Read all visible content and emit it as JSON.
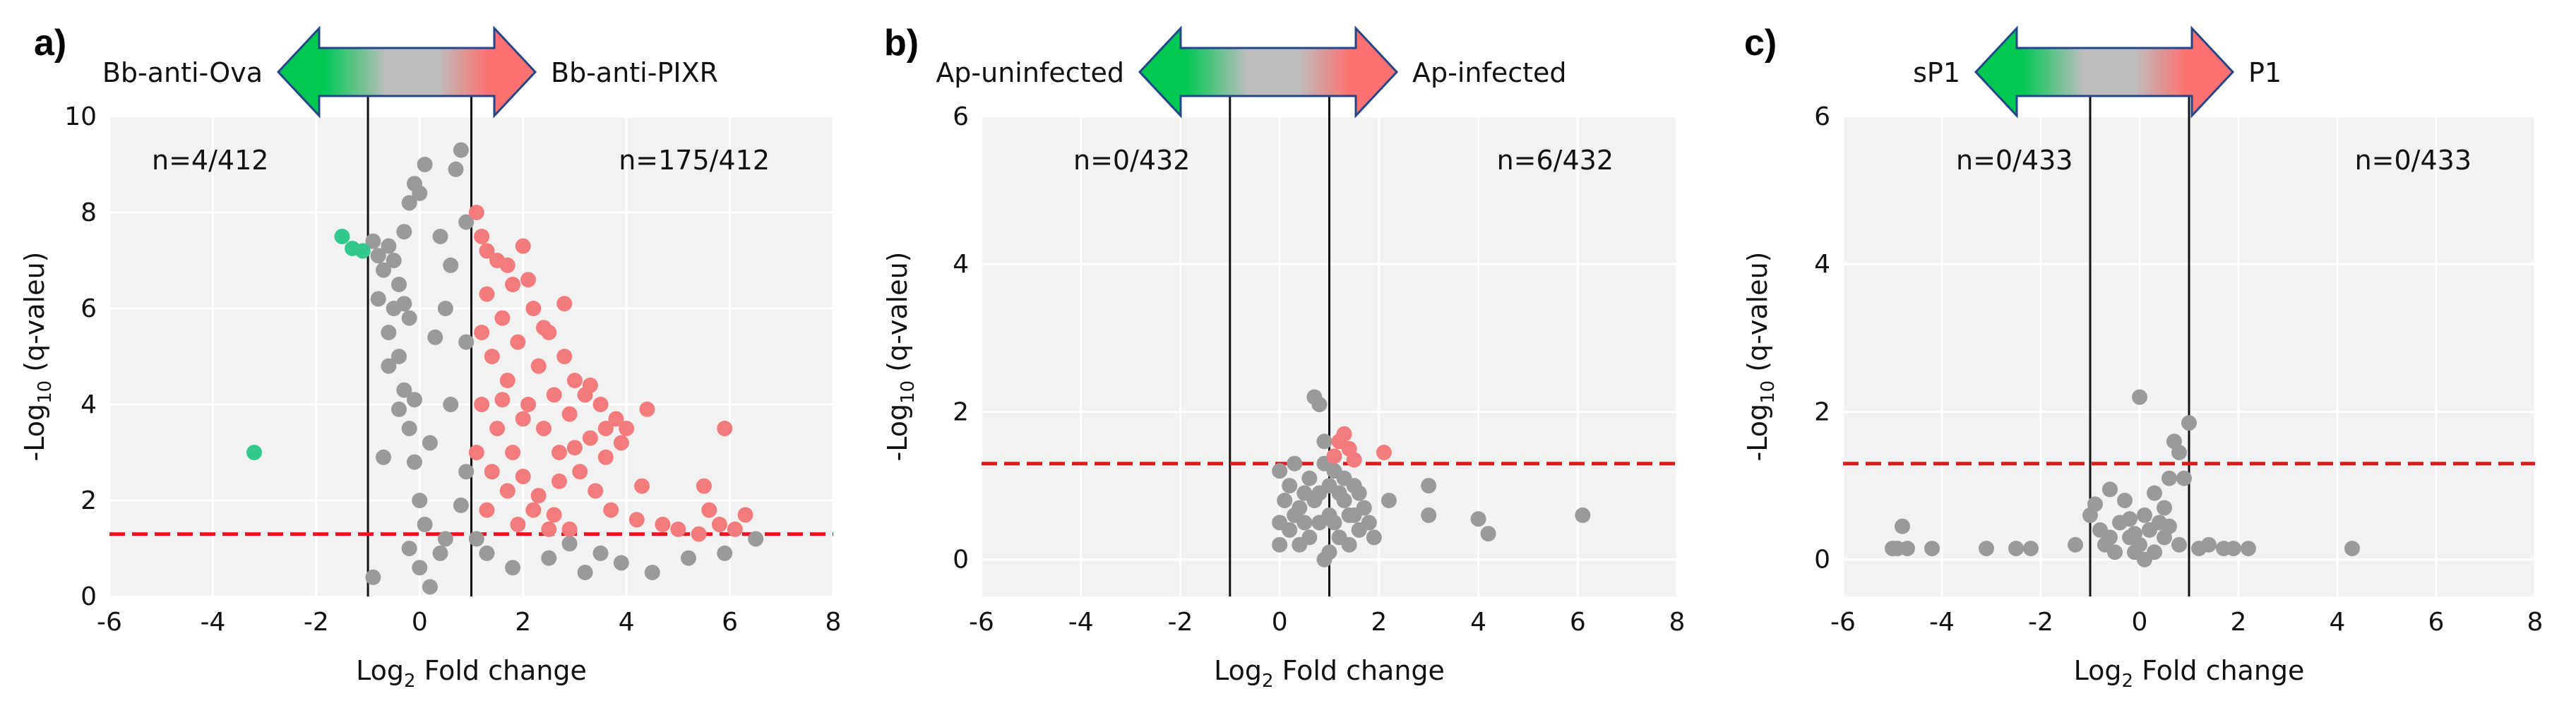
{
  "colors": {
    "up": "#f47b7b",
    "down": "#33c98c",
    "ns": "#9a9a9a",
    "plot_bg": "#f2f2f2",
    "grid": "#ffffff",
    "threshold": "#e8161b",
    "arrow_green": "#00c853",
    "arrow_gray": "#bdbdbd",
    "arrow_red": "#ff7070",
    "arrow_border": "#23458a"
  },
  "chart_data": [
    {
      "type": "scatter",
      "panel": "a)",
      "left_label": "Bb-anti-Ova",
      "right_label": "Bb-anti-PIXR",
      "xlabel_pre": "Log",
      "xlabel_sub": "2",
      "xlabel_post": " Fold change",
      "ylabel_pre": "-Log",
      "ylabel_sub": "10",
      "ylabel_post": " (q-valeu)",
      "xlim": [
        -6,
        8
      ],
      "ylim": [
        0,
        10
      ],
      "xticks": [
        "-6",
        "-4",
        "-2",
        "0",
        "2",
        "4",
        "6",
        "8"
      ],
      "yticks": [
        "0",
        "2",
        "4",
        "6",
        "8",
        "10"
      ],
      "fc_threshold": [
        -1,
        1
      ],
      "q_threshold": 1.3,
      "n_left": "n=4/412",
      "n_right": "n=175/412",
      "points": {
        "down": [
          [
            -1.5,
            7.5
          ],
          [
            -1.3,
            7.25
          ],
          [
            -3.2,
            3.0
          ],
          [
            -1.1,
            7.2
          ]
        ],
        "up": [
          [
            1.1,
            8.0
          ],
          [
            1.2,
            7.5
          ],
          [
            1.5,
            7.0
          ],
          [
            1.8,
            6.5
          ],
          [
            2.0,
            7.3
          ],
          [
            2.2,
            6.0
          ],
          [
            2.5,
            5.5
          ],
          [
            2.8,
            5.0
          ],
          [
            3.0,
            4.5
          ],
          [
            3.2,
            4.2
          ],
          [
            3.5,
            4.0
          ],
          [
            3.8,
            3.7
          ],
          [
            4.0,
            3.5
          ],
          [
            1.3,
            6.3
          ],
          [
            1.6,
            5.8
          ],
          [
            1.9,
            5.3
          ],
          [
            2.3,
            4.8
          ],
          [
            2.6,
            4.2
          ],
          [
            2.9,
            3.8
          ],
          [
            3.3,
            3.3
          ],
          [
            3.6,
            2.9
          ],
          [
            1.4,
            5.0
          ],
          [
            1.7,
            4.5
          ],
          [
            2.1,
            4.0
          ],
          [
            2.4,
            3.5
          ],
          [
            2.7,
            3.0
          ],
          [
            3.1,
            2.6
          ],
          [
            3.4,
            2.2
          ],
          [
            3.7,
            1.8
          ],
          [
            4.2,
            1.6
          ],
          [
            1.2,
            4.0
          ],
          [
            1.5,
            3.5
          ],
          [
            1.8,
            3.0
          ],
          [
            2.0,
            2.5
          ],
          [
            2.3,
            2.1
          ],
          [
            2.6,
            1.7
          ],
          [
            2.9,
            1.4
          ],
          [
            1.1,
            3.0
          ],
          [
            1.4,
            2.6
          ],
          [
            1.7,
            2.2
          ],
          [
            2.2,
            1.8
          ],
          [
            1.3,
            1.8
          ],
          [
            1.9,
            1.5
          ],
          [
            2.5,
            1.4
          ],
          [
            3.9,
            3.2
          ],
          [
            4.3,
            2.3
          ],
          [
            4.7,
            1.5
          ],
          [
            5.0,
            1.4
          ],
          [
            5.4,
            1.3
          ],
          [
            5.6,
            1.8
          ],
          [
            5.8,
            1.5
          ],
          [
            6.1,
            1.4
          ],
          [
            6.3,
            1.7
          ],
          [
            5.9,
            3.5
          ],
          [
            5.5,
            2.3
          ],
          [
            4.4,
            3.9
          ],
          [
            3.3,
            4.4
          ],
          [
            2.8,
            6.1
          ],
          [
            2.4,
            5.6
          ],
          [
            1.7,
            6.9
          ],
          [
            1.3,
            7.2
          ],
          [
            2.1,
            6.6
          ],
          [
            3.0,
            3.1
          ],
          [
            3.6,
            3.5
          ],
          [
            2.0,
            3.7
          ],
          [
            1.6,
            4.1
          ],
          [
            1.2,
            5.5
          ],
          [
            2.7,
            2.4
          ]
        ],
        "ns": [
          [
            -0.9,
            7.4
          ],
          [
            -0.8,
            7.1
          ],
          [
            -0.7,
            6.8
          ],
          [
            -0.6,
            7.3
          ],
          [
            -0.5,
            7.0
          ],
          [
            -0.4,
            6.5
          ],
          [
            -0.3,
            7.6
          ],
          [
            -0.2,
            8.2
          ],
          [
            -0.1,
            8.6
          ],
          [
            0.0,
            8.4
          ],
          [
            -0.5,
            6.0
          ],
          [
            -0.6,
            5.5
          ],
          [
            -0.4,
            5.0
          ],
          [
            -0.3,
            4.3
          ],
          [
            -0.2,
            3.5
          ],
          [
            -0.1,
            2.8
          ],
          [
            0.0,
            2.0
          ],
          [
            0.1,
            1.5
          ],
          [
            -0.2,
            1.0
          ],
          [
            0.0,
            0.6
          ],
          [
            -0.9,
            0.4
          ],
          [
            0.2,
            0.2
          ],
          [
            0.4,
            0.9
          ],
          [
            0.6,
            6.9
          ],
          [
            0.7,
            8.9
          ],
          [
            0.8,
            9.3
          ],
          [
            0.9,
            7.8
          ],
          [
            0.5,
            6.0
          ],
          [
            0.3,
            5.4
          ],
          [
            0.2,
            3.2
          ],
          [
            0.8,
            1.9
          ],
          [
            0.9,
            2.6
          ],
          [
            0.5,
            1.2
          ],
          [
            -0.7,
            2.9
          ],
          [
            -0.8,
            6.2
          ],
          [
            -0.3,
            6.1
          ],
          [
            -0.2,
            5.8
          ],
          [
            0.1,
            9.0
          ],
          [
            1.3,
            0.9
          ],
          [
            1.8,
            0.6
          ],
          [
            2.5,
            0.8
          ],
          [
            3.2,
            0.5
          ],
          [
            3.9,
            0.7
          ],
          [
            4.5,
            0.5
          ],
          [
            5.2,
            0.8
          ],
          [
            5.9,
            0.9
          ],
          [
            6.5,
            1.2
          ],
          [
            1.1,
            1.2
          ],
          [
            2.9,
            1.1
          ],
          [
            3.5,
            0.9
          ],
          [
            0.6,
            4.0
          ],
          [
            0.4,
            7.5
          ],
          [
            0.9,
            5.3
          ],
          [
            -0.4,
            3.9
          ],
          [
            -0.6,
            4.8
          ],
          [
            -0.1,
            4.1
          ]
        ]
      }
    },
    {
      "type": "scatter",
      "panel": "b)",
      "left_label": "Ap-uninfected",
      "right_label": "Ap-infected",
      "xlabel_pre": "Log",
      "xlabel_sub": "2",
      "xlabel_post": " Fold change",
      "ylabel_pre": "-Log",
      "ylabel_sub": "10",
      "ylabel_post": " (q-valeu)",
      "xlim": [
        -6,
        8
      ],
      "ylim": [
        -0.5,
        6
      ],
      "xticks": [
        "-6",
        "-4",
        "-2",
        "0",
        "2",
        "4",
        "6",
        "8"
      ],
      "yticks": [
        "0",
        "2",
        "4",
        "6"
      ],
      "fc_threshold": [
        -1,
        1
      ],
      "q_threshold": 1.3,
      "n_left": "n=0/432",
      "n_right": "n=6/432",
      "points": {
        "down": [],
        "up": [
          [
            1.2,
            1.6
          ],
          [
            1.4,
            1.5
          ],
          [
            1.1,
            1.4
          ],
          [
            1.5,
            1.35
          ],
          [
            2.1,
            1.45
          ],
          [
            1.3,
            1.7
          ]
        ],
        "ns": [
          [
            0.0,
            1.2
          ],
          [
            0.1,
            0.8
          ],
          [
            0.2,
            0.4
          ],
          [
            0.3,
            0.6
          ],
          [
            0.4,
            0.2
          ],
          [
            0.5,
            0.9
          ],
          [
            0.6,
            1.1
          ],
          [
            0.7,
            2.2
          ],
          [
            0.8,
            2.1
          ],
          [
            0.9,
            1.6
          ],
          [
            1.0,
            1.0
          ],
          [
            1.1,
            0.5
          ],
          [
            1.2,
            0.3
          ],
          [
            1.3,
            0.8
          ],
          [
            1.4,
            0.6
          ],
          [
            1.5,
            1.0
          ],
          [
            1.6,
            0.4
          ],
          [
            1.7,
            0.7
          ],
          [
            1.8,
            0.5
          ],
          [
            0.0,
            0.5
          ],
          [
            0.2,
            1.0
          ],
          [
            0.4,
            0.7
          ],
          [
            0.6,
            0.3
          ],
          [
            0.8,
            0.5
          ],
          [
            1.0,
            0.1
          ],
          [
            1.2,
            0.9
          ],
          [
            1.4,
            0.2
          ],
          [
            0.9,
            0.0
          ],
          [
            1.0,
            0.6
          ],
          [
            1.1,
            1.2
          ],
          [
            0.7,
            0.8
          ],
          [
            0.9,
            1.3
          ],
          [
            1.3,
            1.1
          ],
          [
            1.6,
            0.9
          ],
          [
            2.2,
            0.8
          ],
          [
            3.0,
            1.0
          ],
          [
            3.0,
            0.6
          ],
          [
            4.0,
            0.55
          ],
          [
            4.2,
            0.35
          ],
          [
            6.1,
            0.6
          ],
          [
            0.0,
            0.2
          ],
          [
            0.5,
            0.5
          ],
          [
            1.5,
            0.6
          ],
          [
            0.8,
            0.9
          ],
          [
            1.9,
            0.3
          ],
          [
            0.3,
            1.3
          ]
        ]
      }
    },
    {
      "type": "scatter",
      "panel": "c)",
      "left_label": "sP1",
      "right_label": "P1",
      "xlabel_pre": "Log",
      "xlabel_sub": "2",
      "xlabel_post": " Fold change",
      "ylabel_pre": "-Log",
      "ylabel_sub": "10",
      "ylabel_post": " (q-valeu)",
      "xlim": [
        -6,
        8
      ],
      "ylim": [
        -0.5,
        6
      ],
      "xticks": [
        "-6",
        "-4",
        "-2",
        "0",
        "2",
        "4",
        "6",
        "8"
      ],
      "yticks": [
        "0",
        "2",
        "4",
        "6"
      ],
      "fc_threshold": [
        -1,
        1
      ],
      "q_threshold": 1.3,
      "n_left": "n=0/433",
      "n_right": "n=0/433",
      "points": {
        "down": [],
        "up": [],
        "ns": [
          [
            -5.0,
            0.15
          ],
          [
            -4.9,
            0.15
          ],
          [
            -4.8,
            0.45
          ],
          [
            -4.7,
            0.15
          ],
          [
            -4.2,
            0.15
          ],
          [
            -3.1,
            0.15
          ],
          [
            -2.5,
            0.15
          ],
          [
            -2.2,
            0.15
          ],
          [
            -1.3,
            0.2
          ],
          [
            -1.0,
            0.6
          ],
          [
            -0.9,
            0.75
          ],
          [
            -0.8,
            0.4
          ],
          [
            -0.7,
            0.2
          ],
          [
            -0.6,
            0.3
          ],
          [
            -0.5,
            0.1
          ],
          [
            -0.4,
            0.5
          ],
          [
            -0.3,
            0.8
          ],
          [
            -0.2,
            0.3
          ],
          [
            -0.1,
            0.1
          ],
          [
            0.0,
            0.2
          ],
          [
            0.1,
            0.6
          ],
          [
            0.2,
            0.4
          ],
          [
            0.3,
            0.1
          ],
          [
            0.4,
            0.5
          ],
          [
            0.5,
            0.3
          ],
          [
            0.6,
            1.1
          ],
          [
            0.7,
            1.6
          ],
          [
            0.8,
            1.45
          ],
          [
            0.9,
            1.1
          ],
          [
            1.0,
            1.85
          ],
          [
            0.0,
            2.2
          ],
          [
            0.3,
            0.9
          ],
          [
            0.5,
            0.7
          ],
          [
            0.8,
            0.2
          ],
          [
            1.2,
            0.15
          ],
          [
            1.4,
            0.2
          ],
          [
            1.7,
            0.15
          ],
          [
            1.9,
            0.15
          ],
          [
            2.2,
            0.15
          ],
          [
            4.3,
            0.15
          ],
          [
            -0.6,
            0.95
          ],
          [
            0.1,
            0.0
          ],
          [
            -0.2,
            0.55
          ],
          [
            0.6,
            0.45
          ],
          [
            -0.1,
            0.35
          ]
        ]
      }
    }
  ]
}
